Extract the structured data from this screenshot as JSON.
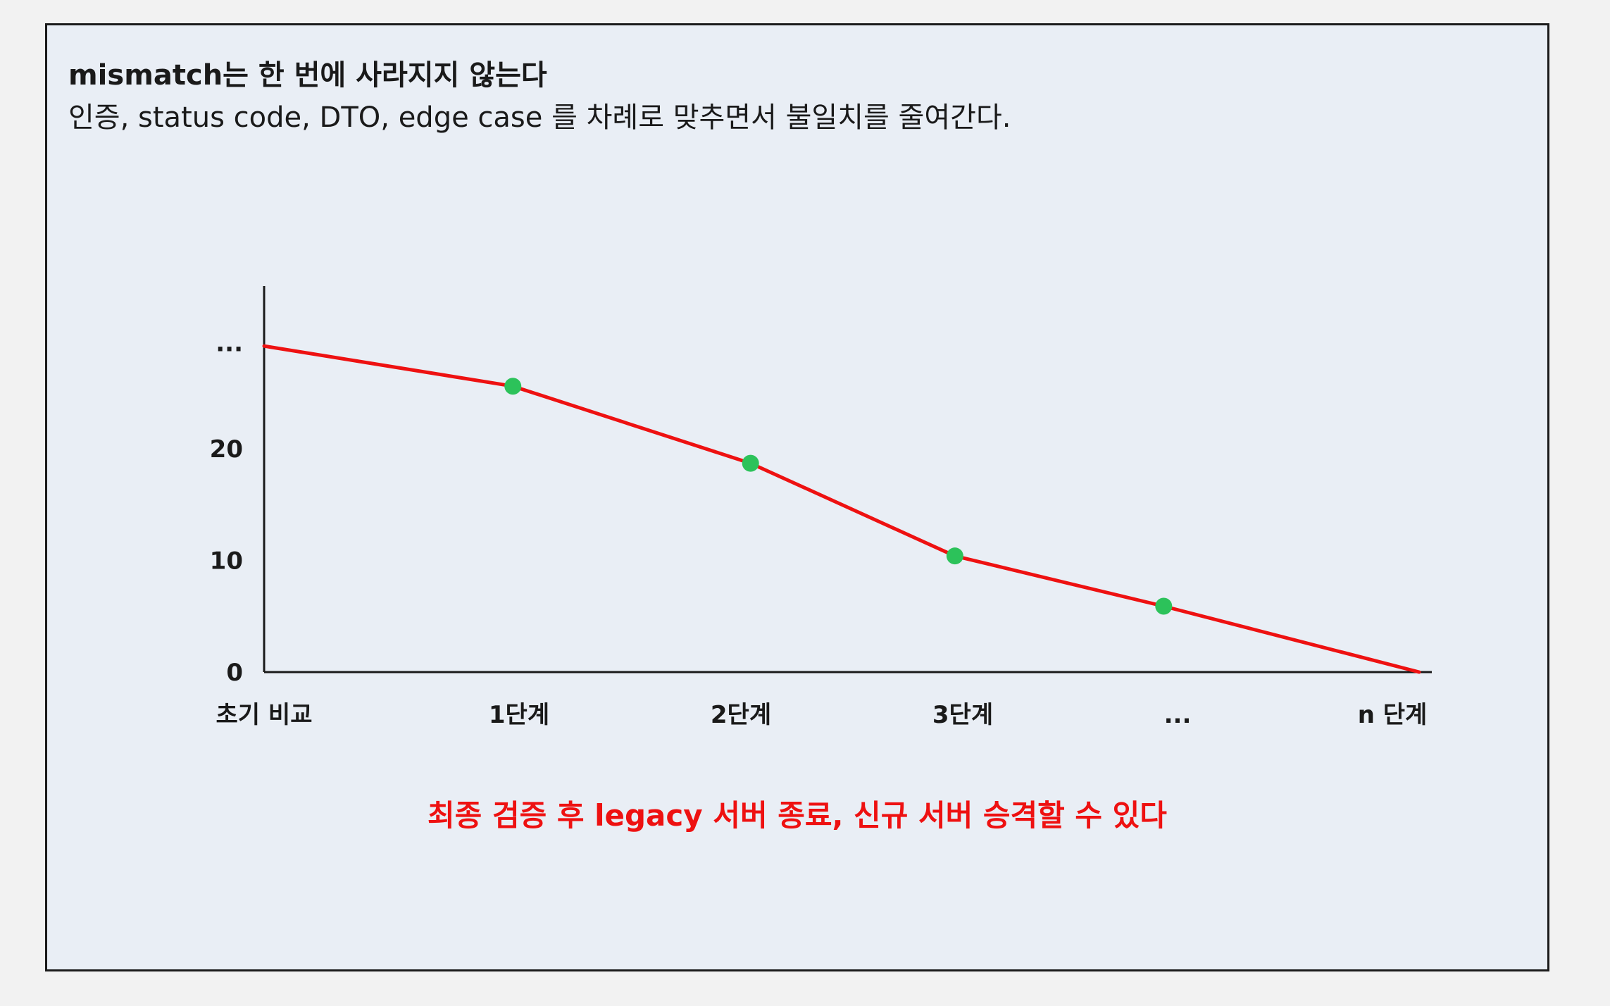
{
  "header": {
    "title": "mismatch는 한 번에 사라지지 않는다",
    "subtitle": "인증, status code, DTO, edge case 를 차례로 맞추면서 불일치를 줄여간다."
  },
  "footer": {
    "conclusion": "최종 검증 후 legacy 서버 종료, 신규 서버 승격할 수 있다"
  },
  "colors": {
    "line": "#ee1111",
    "point": "#2cc25a",
    "axis": "#1a1a1a",
    "panel": "#e9eef5"
  },
  "chart_data": {
    "type": "line",
    "title": "mismatch는 한 번에 사라지지 않는다",
    "xlabel": "",
    "ylabel": "",
    "categories": [
      "초기 비교",
      "1단계",
      "2단계",
      "3단계",
      "...",
      "n 단계"
    ],
    "x": [
      0,
      1.12,
      2.19,
      3.11,
      4.05,
      5.2
    ],
    "values": [
      29.2,
      25.6,
      18.7,
      10.4,
      5.9,
      0
    ],
    "markers": [
      false,
      true,
      true,
      true,
      true,
      false
    ],
    "ylim": [
      0,
      34
    ],
    "yticks": [
      {
        "value": 0,
        "label": "0"
      },
      {
        "value": 10,
        "label": "10"
      },
      {
        "value": 20,
        "label": "20"
      },
      {
        "value": 29.5,
        "label": "..."
      }
    ],
    "grid": false,
    "legend": "none"
  }
}
